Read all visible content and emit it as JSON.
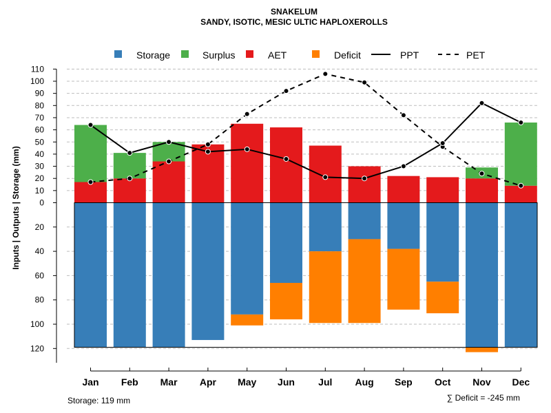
{
  "chart_data": {
    "type": "bar",
    "title": "SNAKELUM",
    "subtitle": "SANDY, ISOTIC, MESIC ULTIC HAPLOXEROLLS",
    "ylabel": "Inputs | Outputs | Storage    (mm)",
    "categories": [
      "Jan",
      "Feb",
      "Mar",
      "Apr",
      "May",
      "Jun",
      "Jul",
      "Aug",
      "Sep",
      "Oct",
      "Nov",
      "Dec"
    ],
    "ylim": [
      -125,
      110
    ],
    "upper_ticks": [
      "0",
      "10",
      "20",
      "30",
      "40",
      "50",
      "60",
      "70",
      "80",
      "90",
      "100",
      "110"
    ],
    "lower_ticks": [
      "20",
      "40",
      "60",
      "80",
      "100",
      "120"
    ],
    "legend": {
      "storage": "Storage",
      "surplus": "Surplus",
      "aet": "AET",
      "deficit": "Deficit",
      "ppt": "PPT",
      "pet": "PET"
    },
    "colors": {
      "storage": "#377eb8",
      "surplus": "#4daf4a",
      "aet": "#e41a1c",
      "deficit": "#ff7f00",
      "ppt": "#000000",
      "pet": "#000000",
      "grid": "#bdbdbd"
    },
    "series": {
      "AET": [
        17,
        20,
        34,
        48,
        65,
        62,
        47,
        30,
        22,
        21,
        20,
        14
      ],
      "Surplus": [
        47,
        21,
        16,
        0,
        0,
        0,
        0,
        0,
        0,
        0,
        9,
        52
      ],
      "PPT": [
        64,
        41,
        50,
        42,
        44,
        36,
        21,
        20,
        30,
        49,
        82,
        66
      ],
      "PET": [
        17,
        20,
        34,
        48,
        73,
        92,
        106,
        99,
        72,
        46,
        24,
        14
      ],
      "Storage": [
        119,
        119,
        119,
        113,
        92,
        66,
        40,
        30,
        38,
        65,
        119,
        119
      ],
      "Deficit": [
        0,
        0,
        0,
        0,
        9,
        30,
        59,
        69,
        50,
        26,
        4,
        0
      ]
    },
    "storage_capacity": 119,
    "footer_left": "Storage: 119 mm",
    "footer_right": "∑ Deficit = -245 mm"
  }
}
